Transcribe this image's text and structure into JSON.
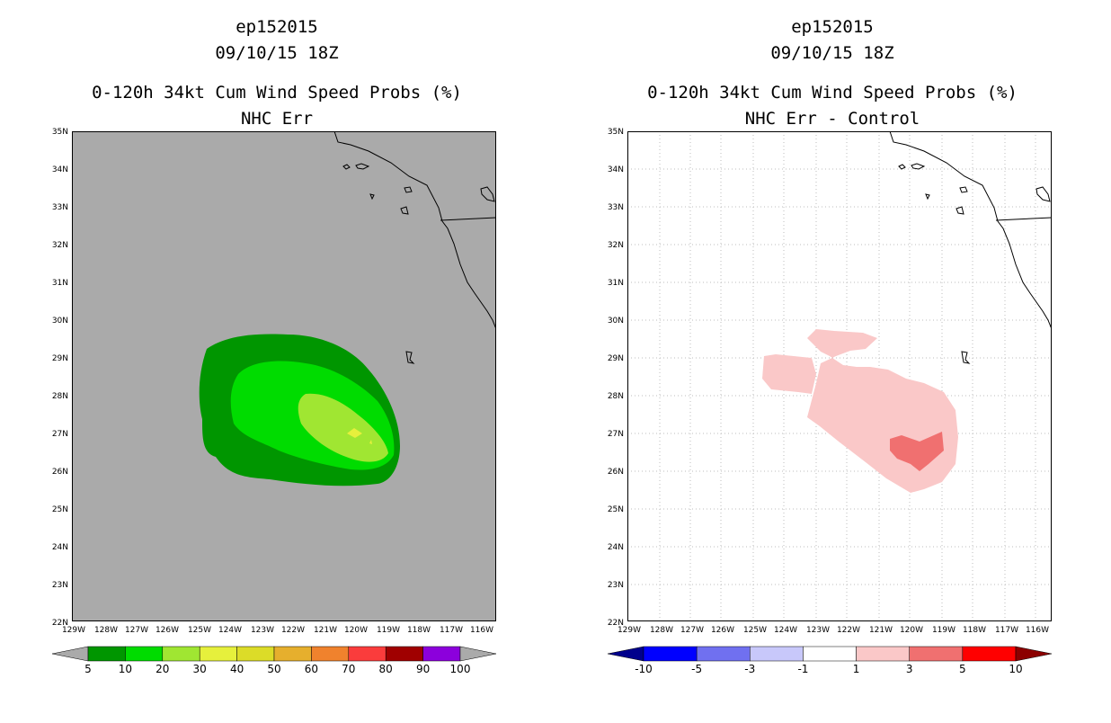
{
  "panels": [
    {
      "id": "left",
      "storm": "ep152015",
      "datetime": "09/10/15 18Z",
      "product": "0-120h 34kt Cum Wind Speed Probs (%)",
      "subtitle": "NHC Err",
      "background": "#aaaaaa",
      "colorbar": {
        "left_arrow": "#aaaaaa",
        "right_arrow": "#aaaaaa",
        "colors": [
          "#009600",
          "#00dc00",
          "#a0e632",
          "#e6f03c",
          "#dcdc28",
          "#e6af2d",
          "#f0822d",
          "#fa3c3c",
          "#a00000",
          "#8c00dc"
        ],
        "labels": [
          "5",
          "10",
          "20",
          "30",
          "40",
          "50",
          "60",
          "70",
          "80",
          "90",
          "100"
        ]
      }
    },
    {
      "id": "right",
      "storm": "ep152015",
      "datetime": "09/10/15 18Z",
      "product": "0-120h 34kt Cum Wind Speed Probs (%)",
      "subtitle": "NHC Err - Control",
      "background": "#ffffff",
      "colorbar": {
        "left_arrow": "#00008c",
        "right_arrow": "#8c0000",
        "colors": [
          "#0000ff",
          "#7070f0",
          "#c8c8fa",
          "#ffffff",
          "#fac8c8",
          "#f07070",
          "#ff0000"
        ],
        "labels": [
          "-10",
          "-5",
          "-3",
          "-1",
          "1",
          "3",
          "5",
          "10"
        ]
      }
    }
  ],
  "axes": {
    "lat_labels": [
      "35N",
      "34N",
      "33N",
      "32N",
      "31N",
      "30N",
      "29N",
      "28N",
      "27N",
      "26N",
      "25N",
      "24N",
      "23N",
      "22N"
    ],
    "lon_labels": [
      "129W",
      "128W",
      "127W",
      "126W",
      "125W",
      "124W",
      "123W",
      "122W",
      "121W",
      "120W",
      "119W",
      "118W",
      "117W",
      "116W"
    ]
  },
  "colors": {
    "prob_5": "#009600",
    "prob_10": "#00dc00",
    "prob_20": "#a0e632",
    "prob_30": "#e6f03c",
    "diff_1": "#fac8c8",
    "diff_3": "#f07070"
  }
}
